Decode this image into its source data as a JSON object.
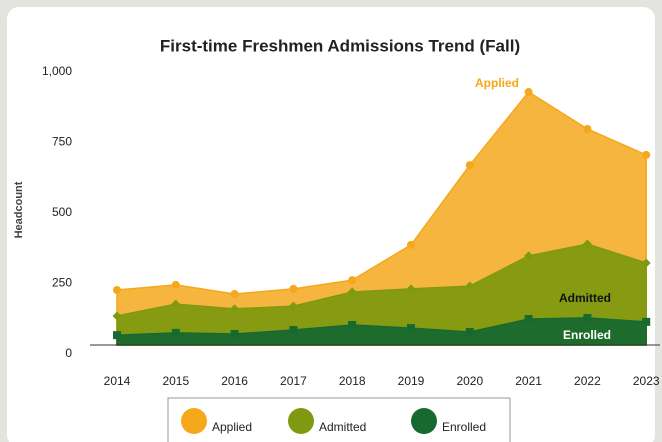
{
  "chart_data": {
    "type": "area",
    "title": "First-time Freshmen Admissions Trend (Fall)",
    "y_label": "Headcount",
    "categories": [
      "2014",
      "2015",
      "2016",
      "2017",
      "2018",
      "2019",
      "2020",
      "2021",
      "2022",
      "2023"
    ],
    "series": [
      {
        "name": "Applied",
        "color": "#f5a81c",
        "marker": "circle",
        "values": [
          195,
          213,
          181,
          199,
          230,
          355,
          638,
          897,
          766,
          674
        ]
      },
      {
        "name": "Admitted",
        "color": "#7f9a10",
        "marker": "diamond",
        "values": [
          103,
          145,
          128,
          138,
          188,
          199,
          209,
          316,
          358,
          291
        ]
      },
      {
        "name": "Enrolled",
        "color": "#17692f",
        "marker": "square",
        "values": [
          35,
          43,
          39,
          53,
          71,
          60,
          46,
          92,
          96,
          82
        ]
      }
    ],
    "ylim": [
      0,
      1000
    ],
    "yticks": [
      0,
      250,
      500,
      750,
      {
        "value": 1000,
        "label": "1,000"
      }
    ],
    "grid": false,
    "legend": "bottom"
  }
}
